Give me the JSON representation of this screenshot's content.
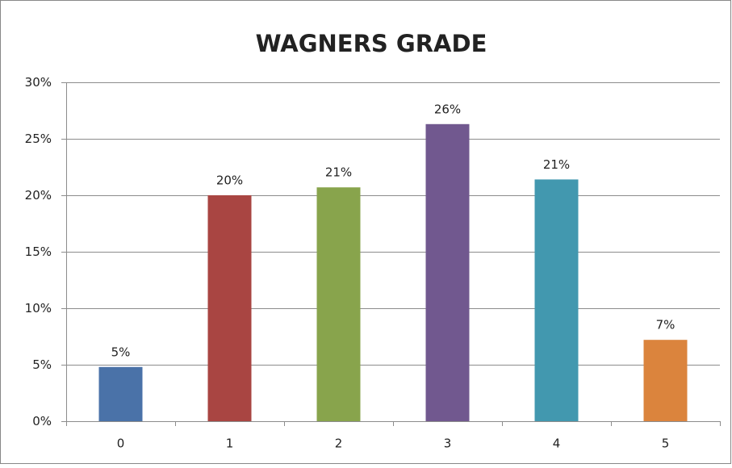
{
  "chart_data": {
    "type": "bar",
    "title": "WAGNERS GRADE",
    "categories": [
      "0",
      "1",
      "2",
      "3",
      "4",
      "5"
    ],
    "values": [
      4.8,
      20.0,
      20.7,
      26.3,
      21.4,
      7.2
    ],
    "value_labels": [
      "5%",
      "20%",
      "21%",
      "26%",
      "21%",
      "7%"
    ],
    "colors": [
      "#4a72a8",
      "#a94542",
      "#88a44c",
      "#71588f",
      "#4298af",
      "#db843d"
    ],
    "ylim": [
      0,
      30
    ],
    "yticks": [
      {
        "value": 0,
        "label": "0%"
      },
      {
        "value": 5,
        "label": "5%"
      },
      {
        "value": 10,
        "label": "10%"
      },
      {
        "value": 15,
        "label": "15%"
      },
      {
        "value": 20,
        "label": "20%"
      },
      {
        "value": 25,
        "label": "25%"
      },
      {
        "value": 30,
        "label": "30%"
      }
    ],
    "grid": true
  }
}
